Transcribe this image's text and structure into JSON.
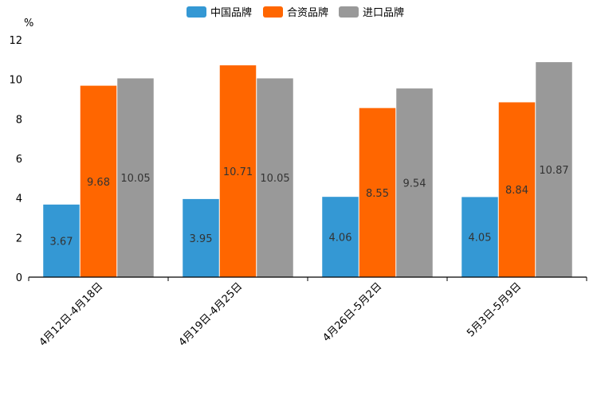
{
  "chart_data": {
    "type": "bar",
    "title": "",
    "unit": "%",
    "xlabel": "",
    "ylabel": "%",
    "ylim": [
      0,
      12
    ],
    "yticks": [
      0,
      2,
      4,
      6,
      8,
      10,
      12
    ],
    "grid": false,
    "legend_position": "top-center",
    "categories": [
      "4月12日-4月18日",
      "4月19日-4月25日",
      "4月26日-5月2日",
      "5月3日-5月9日"
    ],
    "series": [
      {
        "name": "中国品牌",
        "color": "#3498d4",
        "values": [
          3.67,
          3.95,
          4.06,
          4.05
        ]
      },
      {
        "name": "合资品牌",
        "color": "#ff6600",
        "values": [
          9.68,
          10.71,
          8.55,
          8.84
        ]
      },
      {
        "name": "进口品牌",
        "color": "#999999",
        "values": [
          10.05,
          10.05,
          9.54,
          10.87
        ]
      }
    ]
  }
}
